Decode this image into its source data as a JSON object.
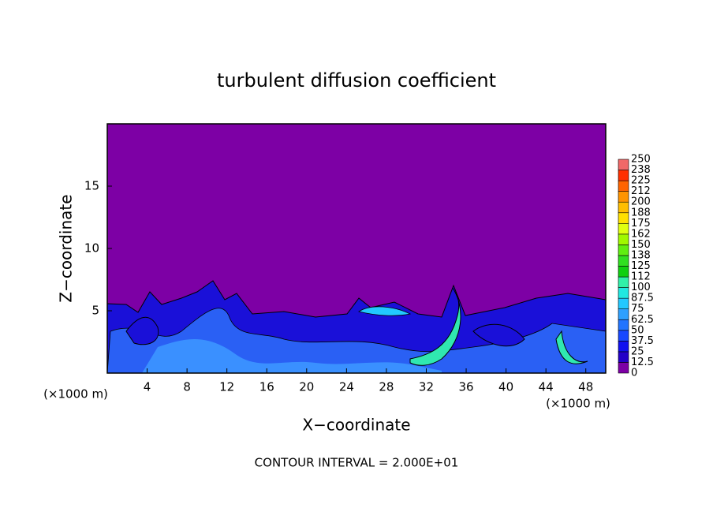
{
  "chart_data": {
    "type": "contour",
    "title": "turbulent diffusion coefficient",
    "xlabel": "X−coordinate",
    "ylabel": "Z−coordinate",
    "x_unit_left": "(×1000 m)",
    "x_unit_right": "(×1000 m)",
    "annotation": "CONTOUR INTERVAL = 2.000E+01",
    "xlim": [
      0,
      50
    ],
    "ylim": [
      0,
      20
    ],
    "xticks": [
      4,
      8,
      12,
      16,
      20,
      24,
      28,
      32,
      36,
      40,
      44,
      48
    ],
    "yticks": [
      5,
      10,
      15
    ],
    "background_color": "#7d00a5",
    "colorbar": {
      "levels": [
        0,
        12.5,
        25,
        37.5,
        50,
        62.5,
        75,
        87.5,
        100,
        {
          "value": 112.5,
          "label": "112"
        },
        125,
        {
          "value": 137.5,
          "label": "138"
        },
        150,
        {
          "value": 162.5,
          "label": "162"
        },
        175,
        {
          "value": 187.5,
          "label": "188"
        },
        200,
        {
          "value": 212.5,
          "label": "212"
        },
        225,
        {
          "value": 237.5,
          "label": "238"
        },
        250
      ],
      "colors": [
        "#7d00a5",
        "#2400c8",
        "#1010f0",
        "#1848ff",
        "#2274ff",
        "#2ea0ff",
        "#22c8ff",
        "#20e8e0",
        "#30f0a8",
        "#10d010",
        "#30e020",
        "#60ee10",
        "#a0f800",
        "#e0ff10",
        "#ffe000",
        "#ffbe00",
        "#ff9400",
        "#ff6400",
        "#ff3000",
        "#f06868"
      ]
    }
  }
}
